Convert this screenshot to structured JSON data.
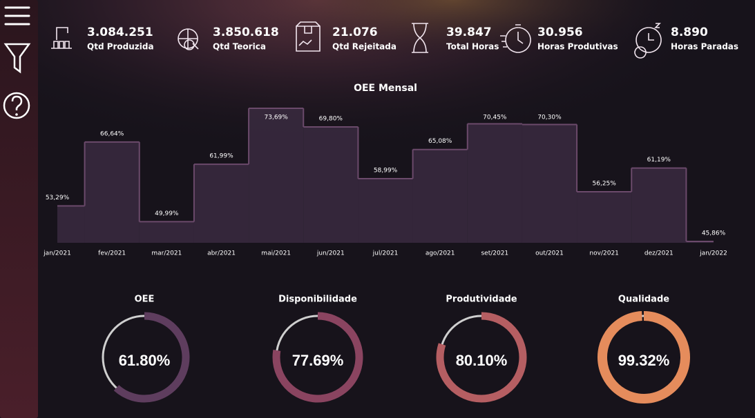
{
  "kpis": [
    {
      "value": "3.084.251",
      "label": "Qtd Produzida"
    },
    {
      "value": "3.850.618",
      "label": "Qtd Teorica"
    },
    {
      "value": "21.076",
      "label": "Qtd Rejeitada"
    },
    {
      "value": "39.847",
      "label": "Total Horas"
    },
    {
      "value": "30.956",
      "label": "Horas Produtivas"
    },
    {
      "value": "8.890",
      "label": "Horas Paradas"
    }
  ],
  "chart_data": [
    {
      "type": "step",
      "title": "OEE Mensal",
      "categories": [
        "jan/2021",
        "fev/2021",
        "mar/2021",
        "abr/2021",
        "mai/2021",
        "jun/2021",
        "jul/2021",
        "ago/2021",
        "set/2021",
        "out/2021",
        "nov/2021",
        "dez/2021",
        "jan/2022"
      ],
      "values": [
        53.29,
        66.64,
        49.99,
        61.99,
        73.69,
        69.8,
        58.99,
        65.08,
        70.45,
        70.3,
        56.25,
        61.19,
        45.86
      ],
      "value_labels": [
        "53,29%",
        "66,64%",
        "49,99%",
        "61,99%",
        "73,69%",
        "69,80%",
        "58,99%",
        "65,08%",
        "70,45%",
        "70,30%",
        "56,25%",
        "61,19%",
        "45,86%"
      ],
      "color": "#6b4a6b"
    },
    {
      "type": "donut",
      "title": "OEE",
      "values": [
        61.8
      ],
      "value_labels": [
        "61.80%"
      ],
      "color": "#5e3d5e",
      "ylim": [
        0,
        100
      ]
    },
    {
      "type": "donut",
      "title": "Disponibilidade",
      "values": [
        77.69
      ],
      "value_labels": [
        "77.69%"
      ],
      "color": "#8a4460",
      "ylim": [
        0,
        100
      ]
    },
    {
      "type": "donut",
      "title": "Produtividade",
      "values": [
        80.1
      ],
      "value_labels": [
        "80.10%"
      ],
      "color": "#b55e62",
      "ylim": [
        0,
        100
      ]
    },
    {
      "type": "donut",
      "title": "Qualidade",
      "values": [
        99.32
      ],
      "value_labels": [
        "99.32%"
      ],
      "color": "#e58c5c",
      "ylim": [
        0,
        100
      ]
    }
  ]
}
